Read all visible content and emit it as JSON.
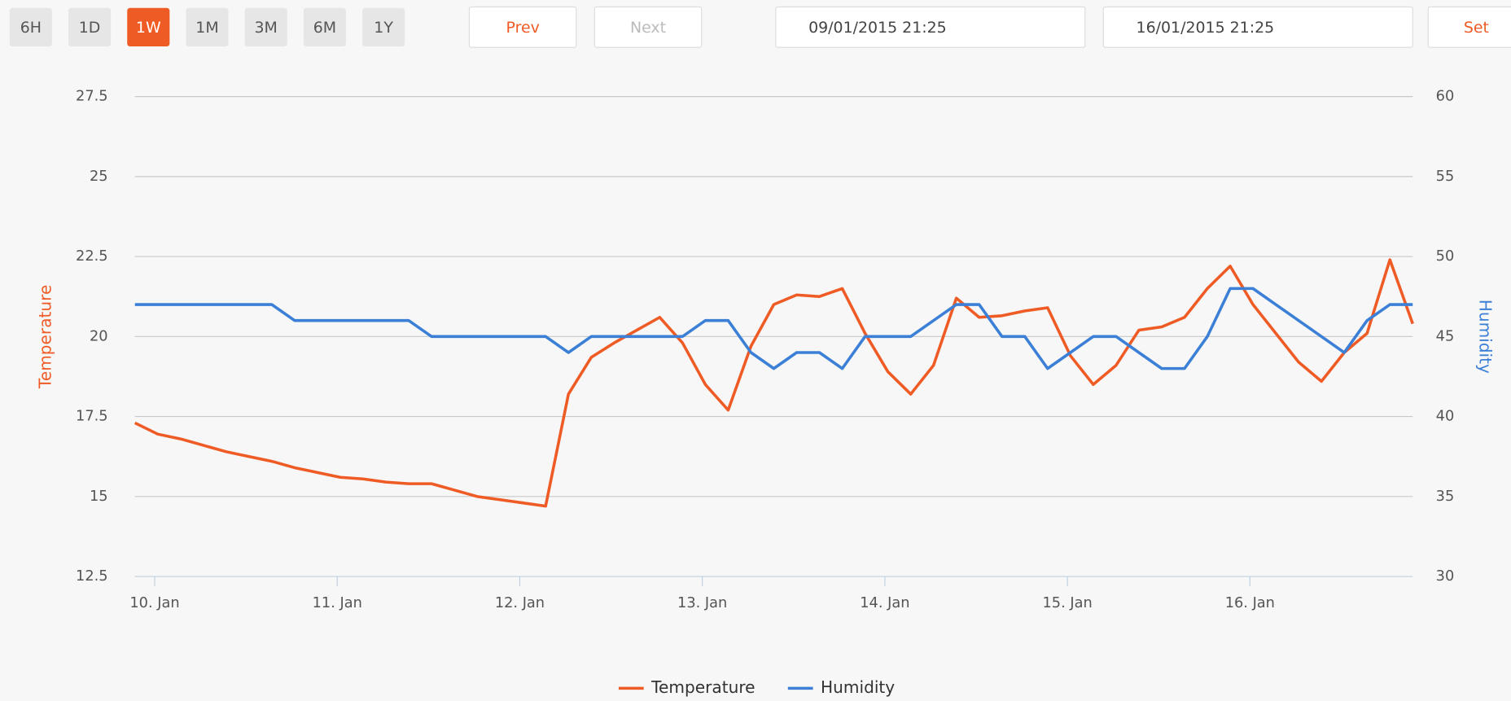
{
  "toolbar": {
    "ranges": [
      "6H",
      "1D",
      "1W",
      "1M",
      "3M",
      "6M",
      "1Y"
    ],
    "active_range": 2,
    "prev": "Prev",
    "next": "Next",
    "from": "09/01/2015  21:25",
    "to": "16/01/2015  21:25",
    "set": "Set"
  },
  "chart_data": {
    "type": "line",
    "x": [
      0,
      3,
      6,
      9,
      12,
      15,
      18,
      21,
      24,
      27,
      30,
      33,
      36,
      39,
      42,
      45,
      48,
      51,
      54,
      57,
      60,
      63,
      66,
      69,
      72,
      75,
      78,
      81,
      84,
      87,
      90,
      93,
      96,
      99,
      102,
      105,
      108,
      111,
      114,
      117,
      120,
      123,
      126,
      129,
      132,
      135,
      138,
      141,
      144,
      147,
      150,
      153,
      156,
      159,
      162,
      165,
      168
    ],
    "xlim": [
      0,
      168
    ],
    "xticks": [
      {
        "value": 2.6,
        "label": "10. Jan"
      },
      {
        "value": 26.6,
        "label": "11. Jan"
      },
      {
        "value": 50.6,
        "label": "12. Jan"
      },
      {
        "value": 74.6,
        "label": "13. Jan"
      },
      {
        "value": 98.6,
        "label": "14. Jan"
      },
      {
        "value": 122.6,
        "label": "15. Jan"
      },
      {
        "value": 146.6,
        "label": "16. Jan"
      }
    ],
    "ylabel": "Temperature",
    "ylim": [
      12.5,
      27.5
    ],
    "yticks": [
      12.5,
      15,
      17.5,
      20,
      22.5,
      25,
      27.5
    ],
    "y2label": "Humidity",
    "y2lim": [
      30,
      60
    ],
    "y2ticks": [
      30,
      35,
      40,
      45,
      50,
      55,
      60
    ],
    "grid": true,
    "legend": "bottom",
    "series": [
      {
        "name": "Temperature",
        "color": "#ef5b25",
        "axis": "y",
        "values": [
          17.3,
          16.95,
          16.8,
          16.6,
          16.4,
          16.25,
          16.1,
          15.9,
          15.75,
          15.6,
          15.55,
          15.45,
          15.4,
          15.4,
          15.2,
          15.0,
          14.9,
          14.8,
          14.7,
          18.2,
          19.35,
          19.8,
          20.2,
          20.6,
          19.8,
          18.5,
          17.7,
          19.7,
          21.0,
          21.3,
          21.25,
          21.5,
          20.1,
          18.9,
          18.2,
          19.1,
          21.2,
          20.6,
          20.65,
          20.8,
          20.9,
          19.4,
          18.5,
          19.1,
          20.2,
          20.3,
          20.6,
          21.5,
          22.2,
          21.0,
          20.1,
          19.2,
          18.6,
          19.5,
          20.1,
          22.4,
          20.4
        ]
      },
      {
        "name": "Humidity",
        "color": "#3b80d6",
        "axis": "y2",
        "values": [
          47,
          47,
          47,
          47,
          47,
          47,
          47,
          46,
          46,
          46,
          46,
          46,
          46,
          45,
          45,
          45,
          45,
          45,
          45,
          44,
          45,
          45,
          45,
          45,
          45,
          46,
          46,
          44,
          43,
          44,
          44,
          43,
          45,
          45,
          45,
          46,
          47,
          47,
          45,
          45,
          43,
          44,
          45,
          45,
          44,
          43,
          43,
          45,
          48,
          48,
          47,
          46,
          45,
          44,
          46,
          47,
          47
        ]
      }
    ]
  }
}
